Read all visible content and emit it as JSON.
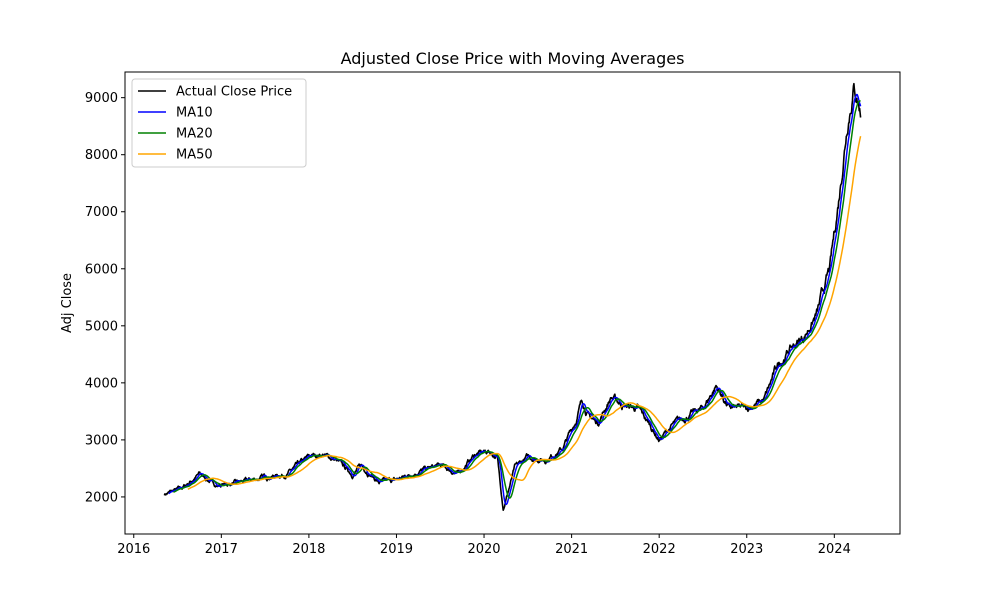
{
  "chart_data": {
    "type": "line",
    "title": "Adjusted Close Price with Moving Averages",
    "xlabel": "",
    "ylabel": "Adj Close",
    "xlim": [
      2015.9,
      2024.75
    ],
    "ylim": [
      1350,
      9450
    ],
    "x_ticks": [
      2016,
      2017,
      2018,
      2019,
      2020,
      2021,
      2022,
      2023,
      2024
    ],
    "x_tick_labels": [
      "2016",
      "2017",
      "2018",
      "2019",
      "2020",
      "2021",
      "2022",
      "2023",
      "2024"
    ],
    "y_ticks": [
      2000,
      3000,
      4000,
      5000,
      6000,
      7000,
      8000,
      9000
    ],
    "y_tick_labels": [
      "2000",
      "3000",
      "4000",
      "5000",
      "6000",
      "7000",
      "8000",
      "9000"
    ],
    "grid": false,
    "legend_position": "top-left",
    "series": [
      {
        "name": "Actual Close Price",
        "color": "#000000"
      },
      {
        "name": "MA10",
        "color": "#0000ff"
      },
      {
        "name": "MA20",
        "color": "#008000"
      },
      {
        "name": "MA50",
        "color": "#ffa500"
      }
    ],
    "key_points": {
      "x": [
        2016.35,
        2016.55,
        2016.75,
        2016.95,
        2017.2,
        2017.5,
        2017.75,
        2018.0,
        2018.15,
        2018.3,
        2018.5,
        2018.6,
        2018.8,
        2019.0,
        2019.25,
        2019.5,
        2019.7,
        2019.9,
        2020.05,
        2020.15,
        2020.22,
        2020.35,
        2020.5,
        2020.7,
        2020.9,
        2021.05,
        2021.12,
        2021.2,
        2021.3,
        2021.45,
        2021.6,
        2021.75,
        2021.9,
        2022.0,
        2022.15,
        2022.3,
        2022.5,
        2022.65,
        2022.8,
        2023.0,
        2023.2,
        2023.35,
        2023.5,
        2023.65,
        2023.8,
        2023.95,
        2024.05,
        2024.15,
        2024.22,
        2024.27,
        2024.3
      ],
      "y": [
        2050,
        2150,
        2400,
        2200,
        2250,
        2350,
        2400,
        2700,
        2750,
        2650,
        2400,
        2550,
        2250,
        2300,
        2450,
        2550,
        2400,
        2750,
        2800,
        2700,
        1800,
        2500,
        2700,
        2650,
        2850,
        3350,
        3700,
        3400,
        3300,
        3750,
        3600,
        3550,
        3250,
        3000,
        3250,
        3400,
        3550,
        3950,
        3550,
        3550,
        3700,
        4300,
        4600,
        4800,
        5200,
        6000,
        7200,
        8600,
        9200,
        9000,
        8750
      ]
    }
  }
}
